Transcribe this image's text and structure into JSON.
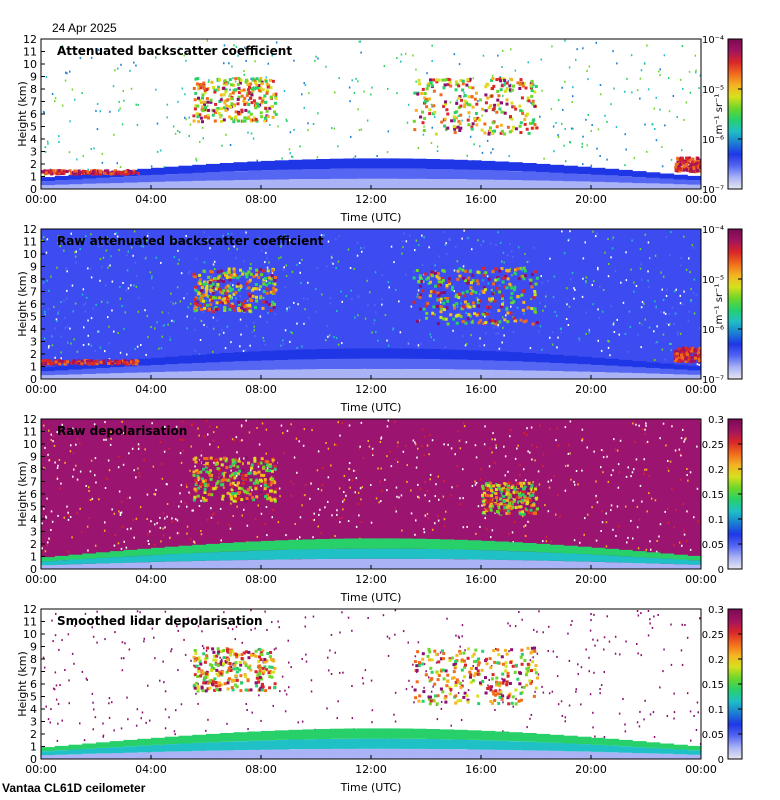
{
  "date": "24 Apr 2025",
  "footer": "Vantaa CL61D ceilometer",
  "colors": {
    "rainbow": [
      "#e6e6f0",
      "#a9b3f5",
      "#5566f2",
      "#1f36e6",
      "#1b7fd4",
      "#1fc0c6",
      "#28d06a",
      "#6cd62a",
      "#d7e01e",
      "#f5b322",
      "#f06a1e",
      "#d9262a",
      "#a0145f",
      "#7a0a55"
    ],
    "background_noise_blue": "#2e3cf0",
    "depol_noise_purple": "#8a0f6e"
  },
  "chart_data": [
    {
      "type": "heatmap",
      "title": "Attenuated backscatter coefficient",
      "xlabel": "Time (UTC)",
      "ylabel": "Height (km)",
      "x_ticks": [
        "00:00",
        "04:00",
        "08:00",
        "12:00",
        "16:00",
        "20:00",
        "00:00"
      ],
      "xlim_hours": [
        0,
        24
      ],
      "ylim": [
        0,
        12
      ],
      "y_ticks": [
        0,
        1,
        2,
        3,
        4,
        5,
        6,
        7,
        8,
        9,
        10,
        11,
        12
      ],
      "colorbar": {
        "scale": "log",
        "ticks": [
          "10⁻⁷",
          "10⁻⁶",
          "10⁻⁵",
          "10⁻⁴"
        ],
        "unit_label": "m⁻¹ sr⁻¹"
      },
      "noise": "sparse",
      "features": [
        {
          "kind": "boundary_layer",
          "t": [
            0,
            24
          ],
          "top_km": [
            0.5,
            2.0
          ],
          "level": "high"
        },
        {
          "kind": "cloud",
          "t": [
            5.5,
            8.5
          ],
          "km": [
            5.5,
            9.0
          ],
          "level": "high"
        },
        {
          "kind": "cloud",
          "t": [
            13.5,
            18.0
          ],
          "km": [
            4.5,
            9.0
          ],
          "level": "high"
        },
        {
          "kind": "low_cloud",
          "t": [
            0.0,
            3.5
          ],
          "km": [
            1.3,
            1.6
          ],
          "level": "max"
        },
        {
          "kind": "low_cloud",
          "t": [
            23.0,
            24.0
          ],
          "km": [
            1.5,
            2.6
          ],
          "level": "max"
        }
      ]
    },
    {
      "type": "heatmap",
      "title": "Raw attenuated backscatter coefficient",
      "xlabel": "Time (UTC)",
      "ylabel": "Height (km)",
      "x_ticks": [
        "00:00",
        "04:00",
        "08:00",
        "12:00",
        "16:00",
        "20:00",
        "00:00"
      ],
      "xlim_hours": [
        0,
        24
      ],
      "ylim": [
        0,
        12
      ],
      "y_ticks": [
        0,
        1,
        2,
        3,
        4,
        5,
        6,
        7,
        8,
        9,
        10,
        11,
        12
      ],
      "colorbar": {
        "scale": "log",
        "ticks": [
          "10⁻⁷",
          "10⁻⁶",
          "10⁻⁵",
          "10⁻⁴"
        ],
        "unit_label": "m⁻¹ sr⁻¹"
      },
      "noise": "dense_blue",
      "features": [
        {
          "kind": "boundary_layer",
          "t": [
            0,
            24
          ],
          "top_km": [
            0.5,
            2.0
          ],
          "level": "high"
        },
        {
          "kind": "cloud",
          "t": [
            5.5,
            8.5
          ],
          "km": [
            5.5,
            9.0
          ],
          "level": "high"
        },
        {
          "kind": "cloud",
          "t": [
            13.5,
            18.0
          ],
          "km": [
            4.5,
            9.0
          ],
          "level": "high"
        },
        {
          "kind": "low_cloud",
          "t": [
            0.0,
            3.5
          ],
          "km": [
            1.3,
            1.6
          ],
          "level": "max"
        },
        {
          "kind": "low_cloud",
          "t": [
            23.0,
            24.0
          ],
          "km": [
            1.5,
            2.6
          ],
          "level": "max"
        }
      ]
    },
    {
      "type": "heatmap",
      "title": "Raw depolarisation",
      "xlabel": "Time (UTC)",
      "ylabel": "Height (km)",
      "x_ticks": [
        "00:00",
        "04:00",
        "08:00",
        "12:00",
        "16:00",
        "20:00",
        "00:00"
      ],
      "xlim_hours": [
        0,
        24
      ],
      "ylim": [
        0,
        12
      ],
      "y_ticks": [
        0,
        1,
        2,
        3,
        4,
        5,
        6,
        7,
        8,
        9,
        10,
        11,
        12
      ],
      "colorbar": {
        "scale": "linear",
        "ticks": [
          "0",
          "0.05",
          "0.1",
          "0.15",
          "0.2",
          "0.25",
          "0.3"
        ],
        "range": [
          0,
          0.3
        ],
        "unit_label": ""
      },
      "noise": "dense_purple",
      "features": [
        {
          "kind": "boundary_layer",
          "t": [
            0,
            24
          ],
          "top_km": [
            0.5,
            2.0
          ],
          "level": "low"
        },
        {
          "kind": "cloud",
          "t": [
            5.5,
            8.5
          ],
          "km": [
            5.5,
            9.0
          ],
          "level": "high"
        },
        {
          "kind": "cloud",
          "t": [
            16.0,
            18.0
          ],
          "km": [
            4.5,
            7.0
          ],
          "level": "high"
        }
      ]
    },
    {
      "type": "heatmap",
      "title": "Smoothed lidar depolarisation",
      "xlabel": "Time (UTC)",
      "ylabel": "Height (km)",
      "x_ticks": [
        "00:00",
        "04:00",
        "08:00",
        "12:00",
        "16:00",
        "20:00",
        "00:00"
      ],
      "xlim_hours": [
        0,
        24
      ],
      "ylim": [
        0,
        12
      ],
      "y_ticks": [
        0,
        1,
        2,
        3,
        4,
        5,
        6,
        7,
        8,
        9,
        10,
        11,
        12
      ],
      "colorbar": {
        "scale": "linear",
        "ticks": [
          "0",
          "0.05",
          "0.1",
          "0.15",
          "0.2",
          "0.25",
          "0.3"
        ],
        "range": [
          0,
          0.3
        ],
        "unit_label": ""
      },
      "noise": "sparse_purple",
      "features": [
        {
          "kind": "boundary_layer",
          "t": [
            0,
            24
          ],
          "top_km": [
            0.5,
            2.0
          ],
          "level": "low"
        },
        {
          "kind": "cloud",
          "t": [
            5.5,
            8.5
          ],
          "km": [
            5.5,
            9.0
          ],
          "level": "high"
        },
        {
          "kind": "cloud",
          "t": [
            13.5,
            18.0
          ],
          "km": [
            4.5,
            9.0
          ],
          "level": "high"
        }
      ]
    }
  ]
}
